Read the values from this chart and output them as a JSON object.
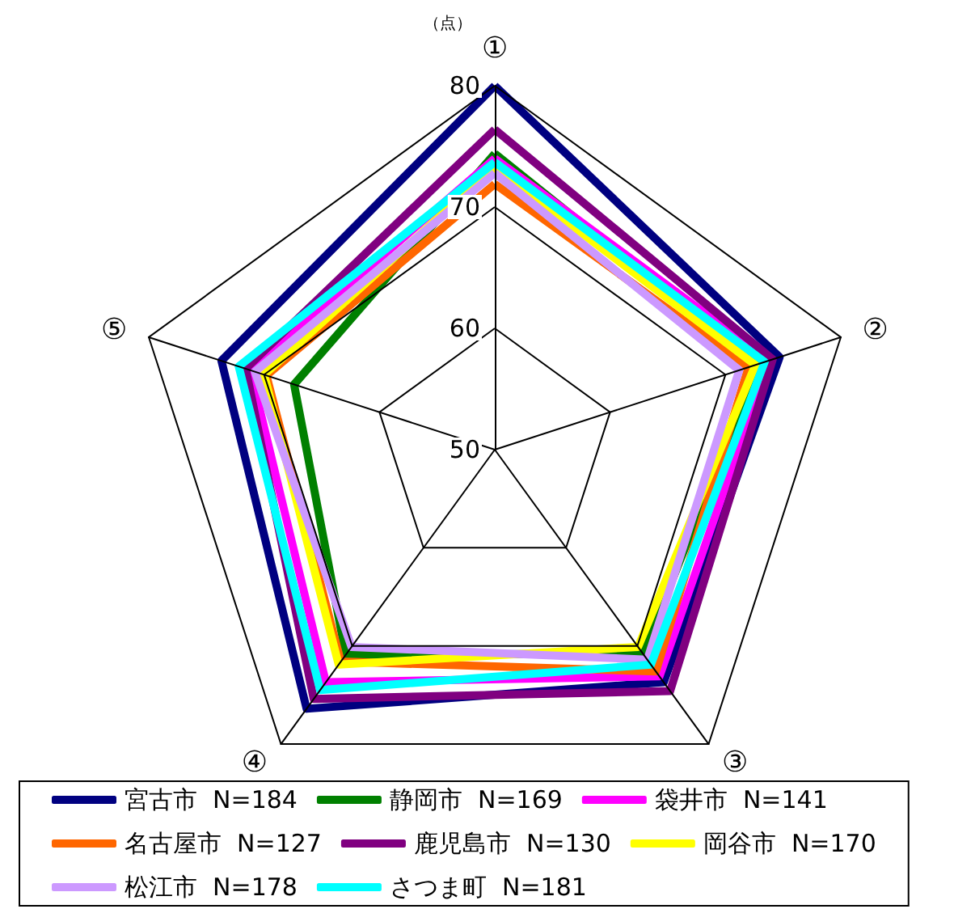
{
  "chart_data": {
    "type": "radar",
    "ylabel": "（点）",
    "categories": [
      "①",
      "②",
      "③",
      "④",
      "⑤"
    ],
    "ylim": [
      50,
      80
    ],
    "yticks": [
      50,
      60,
      70,
      80
    ],
    "marker": "none",
    "legend": "bottom",
    "series": [
      {
        "name": "宮古市  N=184",
        "color": "#000080",
        "values": [
          80,
          74.7,
          73.7,
          76.4,
          73.7
        ]
      },
      {
        "name": "静岡市  N=169",
        "color": "#008000",
        "values": [
          74.4,
          72.8,
          70.8,
          70.9,
          67.4
        ]
      },
      {
        "name": "袋井市  N=141",
        "color": "#ff00ff",
        "values": [
          74.0,
          73.8,
          73.1,
          73.7,
          71.2
        ]
      },
      {
        "name": "名古屋市  N=127",
        "color": "#ff6600",
        "values": [
          71.9,
          72.0,
          72.6,
          71.6,
          69.8
        ]
      },
      {
        "name": "鹿児島市  N=130",
        "color": "#800080",
        "values": [
          76.4,
          74.1,
          74.6,
          75.4,
          71.6
        ]
      },
      {
        "name": "岡谷市  N=170",
        "color": "#ffff00",
        "values": [
          73.3,
          72.6,
          70.1,
          71.9,
          70.0
        ]
      },
      {
        "name": "松江市  N=178",
        "color": "#cc99ff",
        "values": [
          72.8,
          71.2,
          71.4,
          70.1,
          70.8
        ]
      },
      {
        "name": "さつま町  N=181",
        "color": "#00ffff",
        "values": [
          73.7,
          73.4,
          71.9,
          74.5,
          72.2
        ]
      }
    ]
  }
}
